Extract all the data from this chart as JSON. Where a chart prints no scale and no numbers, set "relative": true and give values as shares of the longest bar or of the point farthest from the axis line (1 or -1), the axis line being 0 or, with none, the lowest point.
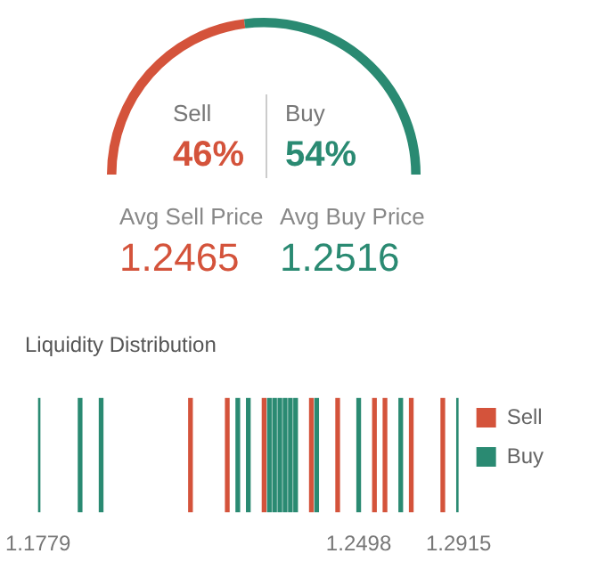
{
  "chart_data": [
    {
      "type": "donut",
      "categories": [
        "Sell",
        "Buy"
      ],
      "values": [
        46,
        54
      ],
      "colors": [
        "#d4533b",
        "#2a8a72"
      ],
      "value_labels": [
        "46%",
        "54%"
      ],
      "annotations": [
        "Avg Sell Price",
        "1.2465",
        "Avg Buy Price",
        "1.2516"
      ]
    },
    {
      "type": "bar",
      "title": "Liquidity Distribution",
      "relative": true,
      "stacked": true,
      "legend": "right",
      "categories": [
        "1.1779",
        null,
        null,
        null,
        null,
        null,
        null,
        null,
        null,
        null,
        null,
        null,
        null,
        null,
        null,
        null,
        null,
        null,
        null,
        null,
        null,
        null,
        null,
        null,
        null,
        null,
        null,
        null,
        null,
        null,
        null,
        null,
        null,
        null,
        null,
        null,
        null,
        null,
        null,
        null,
        null,
        null,
        null,
        null,
        null,
        null,
        null,
        null,
        null,
        null,
        null,
        null,
        null,
        null,
        null,
        null,
        null,
        null,
        null,
        null,
        null,
        "1.2498",
        null,
        null,
        null,
        null,
        null,
        null,
        null,
        null,
        null,
        null,
        null,
        null,
        null,
        null,
        null,
        null,
        null,
        null,
        "1.2915"
      ],
      "series": [
        {
          "name": "Sell",
          "color": "#d4533b",
          "values": [
            null,
            null,
            null,
            null,
            null,
            null,
            null,
            null,
            null,
            null,
            null,
            null,
            null,
            null,
            null,
            null,
            null,
            null,
            null,
            null,
            null,
            null,
            null,
            null,
            null,
            null,
            null,
            null,
            null,
            1,
            null,
            null,
            null,
            null,
            null,
            null,
            1,
            null,
            null,
            null,
            null,
            null,
            null,
            1,
            null,
            null,
            null,
            null,
            null,
            null,
            null,
            null,
            1,
            null,
            null,
            null,
            null,
            1,
            null,
            null,
            null,
            null,
            null,
            null,
            1,
            null,
            1,
            null,
            null,
            null,
            null,
            1,
            null,
            null,
            null,
            null,
            null,
            1,
            null,
            null,
            null
          ]
        },
        {
          "name": "Buy",
          "color": "#2a8a72",
          "values": [
            1,
            null,
            null,
            null,
            null,
            null,
            null,
            null,
            1,
            null,
            null,
            null,
            1,
            null,
            null,
            null,
            null,
            null,
            null,
            null,
            null,
            null,
            null,
            null,
            null,
            null,
            null,
            null,
            null,
            null,
            null,
            null,
            null,
            null,
            null,
            null,
            null,
            null,
            1,
            null,
            1,
            null,
            null,
            null,
            1,
            1,
            1,
            1,
            1,
            1,
            null,
            null,
            null,
            1,
            null,
            null,
            null,
            null,
            null,
            null,
            null,
            1,
            null,
            null,
            null,
            null,
            null,
            null,
            null,
            1,
            null,
            null,
            null,
            null,
            null,
            null,
            null,
            null,
            null,
            null,
            1
          ]
        }
      ]
    }
  ]
}
